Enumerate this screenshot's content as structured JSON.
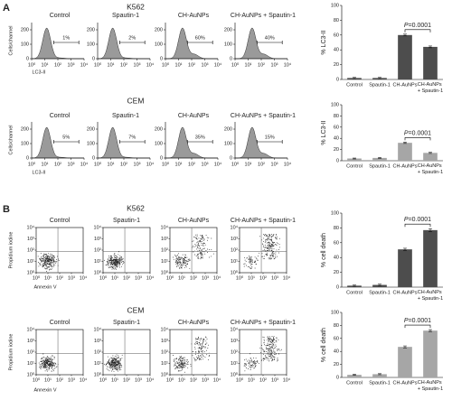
{
  "panels": [
    {
      "label": "A",
      "rows": [
        {
          "cell_line": "K562",
          "y_label": "Cells/channel",
          "x_label": "LC3-II",
          "ylim": [
            0,
            250
          ],
          "yticks": [
            0,
            100,
            200
          ],
          "xlim": [
            1,
            10000
          ],
          "xticks": [
            {
              "value": 1,
              "label": "10⁰"
            },
            {
              "value": 10,
              "label": "10¹"
            },
            {
              "value": 100,
              "label": "10²"
            },
            {
              "value": 1000,
              "label": "10³"
            },
            {
              "value": 10000,
              "label": "10⁴"
            }
          ],
          "plots": [
            {
              "title": "Control",
              "gate": "1%"
            },
            {
              "title": "Spautin-1",
              "gate": "2%"
            },
            {
              "title": "CH-AuNPs",
              "gate": "60%"
            },
            {
              "title": "CH-AuNPs + Spautin-1",
              "gate": "40%"
            }
          ]
        },
        {
          "cell_line": "CEM",
          "y_label": "Cells/channel",
          "x_label": "LC3-II",
          "ylim": [
            0,
            250
          ],
          "yticks": [
            0,
            100,
            200
          ],
          "xlim": [
            1,
            10000
          ],
          "xticks": [
            {
              "value": 1,
              "label": "10⁰"
            },
            {
              "value": 10,
              "label": "10¹"
            },
            {
              "value": 100,
              "label": "10²"
            },
            {
              "value": 1000,
              "label": "10³"
            },
            {
              "value": 10000,
              "label": "10⁴"
            }
          ],
          "plots": [
            {
              "title": "Control",
              "gate": "5%"
            },
            {
              "title": "Spautin-1",
              "gate": "7%"
            },
            {
              "title": "CH-AuNPs",
              "gate": "35%"
            },
            {
              "title": "CH-AuNPs + Spautin-1",
              "gate": "15%"
            }
          ]
        }
      ]
    },
    {
      "label": "B",
      "rows": [
        {
          "cell_line": "K562",
          "y_label": "Propidium iodine",
          "x_label": "Annexin V",
          "lim": [
            1,
            10000
          ],
          "ticks": [
            {
              "value": 1,
              "label": "10⁰"
            },
            {
              "value": 10,
              "label": "10¹"
            },
            {
              "value": 100,
              "label": "10²"
            },
            {
              "value": 1000,
              "label": "10³"
            },
            {
              "value": 10000,
              "label": "10⁴"
            }
          ],
          "plots": [
            {
              "title": "Control"
            },
            {
              "title": "Spautin-1"
            },
            {
              "title": "CH-AuNPs"
            },
            {
              "title": "CH-AuNPs + Spautin-1"
            }
          ]
        },
        {
          "cell_line": "CEM",
          "y_label": "Propidium iodine",
          "x_label": "Annexin V",
          "lim": [
            1,
            10000
          ],
          "ticks": [
            {
              "value": 1,
              "label": "10⁰"
            },
            {
              "value": 10,
              "label": "10¹"
            },
            {
              "value": 100,
              "label": "10²"
            },
            {
              "value": 1000,
              "label": "10³"
            },
            {
              "value": 10000,
              "label": "10⁴"
            }
          ],
          "plots": [
            {
              "title": "Control"
            },
            {
              "title": "Spautin-1"
            },
            {
              "title": "CH-AuNPs"
            },
            {
              "title": "CH-AuNPs + Spautin-1"
            }
          ]
        }
      ]
    }
  ],
  "chart_data": [
    {
      "type": "bar",
      "y_label": "% LC3-II",
      "categories": [
        "Control",
        "Spautin-1",
        "CH-AuNPs",
        "CH-AuNPs + Spautin-1"
      ],
      "values": [
        2,
        2,
        60,
        44
      ],
      "errors": [
        0.8,
        0.8,
        1.2,
        1.2
      ],
      "color": "#4d4d4d",
      "ylim": [
        0,
        100
      ],
      "yticks": [
        0,
        20,
        40,
        60,
        80,
        100
      ],
      "annotation": "P=0.0001"
    },
    {
      "type": "bar",
      "y_label": "% LC3-II",
      "categories": [
        "Control",
        "Spautin-1",
        "CH-AuNPs",
        "CH-AuNPs + Spautin-1"
      ],
      "values": [
        4,
        5,
        32,
        14
      ],
      "errors": [
        0.8,
        0.8,
        1.2,
        1
      ],
      "color": "#a6a6a6",
      "ylim": [
        0,
        100
      ],
      "yticks": [
        0,
        20,
        40,
        60,
        80,
        100
      ],
      "annotation": "P=0.0001"
    },
    {
      "type": "bar",
      "y_label": "% cell death",
      "categories": [
        "Control",
        "Spautin-1",
        "CH-AuNPs",
        "CH-AuNPs + Spautin-1"
      ],
      "values": [
        2,
        3,
        51,
        77
      ],
      "errors": [
        0.8,
        1,
        1.5,
        2
      ],
      "color": "#4d4d4d",
      "ylim": [
        0,
        100
      ],
      "yticks": [
        0,
        20,
        40,
        60,
        80,
        100
      ],
      "annotation": "P=0.0001"
    },
    {
      "type": "bar",
      "y_label": "% cell death",
      "categories": [
        "Control",
        "Spautin-1",
        "CH-AuNPs",
        "CH-AuNPs + Spautin-1"
      ],
      "values": [
        4,
        5,
        47,
        72
      ],
      "errors": [
        0.8,
        0.8,
        1.5,
        1.5
      ],
      "color": "#a6a6a6",
      "ylim": [
        0,
        100
      ],
      "yticks": [
        0,
        20,
        40,
        60,
        80,
        100
      ],
      "annotation": "P=0.0001"
    }
  ]
}
